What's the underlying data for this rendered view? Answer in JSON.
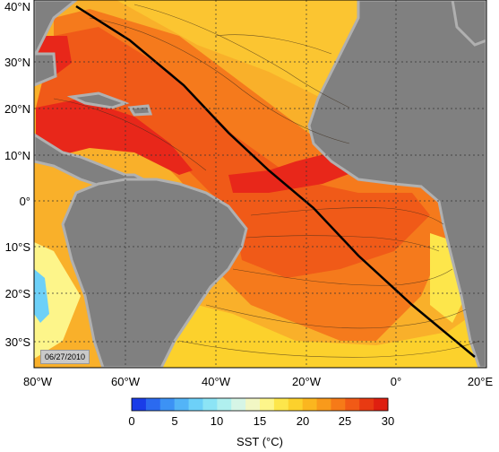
{
  "map": {
    "date_stamp": "06/27/2010",
    "lat_labels": [
      "40°N",
      "30°N",
      "20°N",
      "10°N",
      "0°",
      "10°S",
      "20°S",
      "30°S"
    ],
    "lon_labels": [
      "80°W",
      "60°W",
      "40°W",
      "20°W",
      "0°",
      "20°E"
    ],
    "land_color": "#808080",
    "coast_color": "#b0b0b0",
    "track_color": "#000000"
  },
  "colorbar": {
    "ticks": [
      "0",
      "5",
      "10",
      "15",
      "20",
      "25",
      "30"
    ],
    "title": "SST (°C)",
    "colors": [
      "#1a3ce8",
      "#2b6af0",
      "#3c92f5",
      "#53b4f7",
      "#6dd0f8",
      "#8ce4f5",
      "#b0f0ef",
      "#d6f5e6",
      "#f2f7c4",
      "#fdf58a",
      "#fde64b",
      "#fcd12c",
      "#fbb61f",
      "#f99a1b",
      "#f67a18",
      "#f15a16",
      "#e83a12",
      "#df1f10"
    ]
  }
}
